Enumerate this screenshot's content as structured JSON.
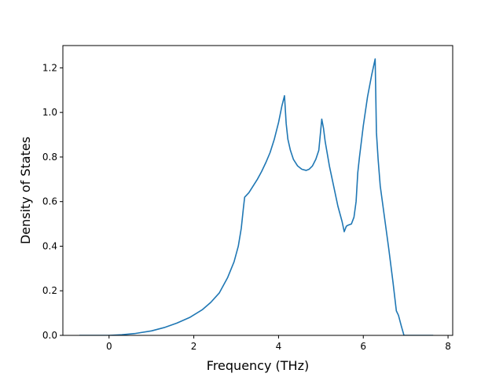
{
  "chart_data": {
    "type": "line",
    "title": "",
    "xlabel": "Frequency (THz)",
    "ylabel": "Density of States",
    "xlim": [
      -1.09,
      8.11
    ],
    "ylim": [
      0,
      1.3
    ],
    "xticks": [
      0,
      2,
      4,
      6,
      8
    ],
    "yticks": [
      0.0,
      0.2,
      0.4,
      0.6,
      0.8,
      1.0,
      1.2
    ],
    "xtick_labels": [
      "0",
      "2",
      "4",
      "6",
      "8"
    ],
    "ytick_labels": [
      "0.0",
      "0.2",
      "0.4",
      "0.6",
      "0.8",
      "1.0",
      "1.2"
    ],
    "grid": false,
    "legend": "none",
    "series": [
      {
        "color": "#1f77b4",
        "x": [
          -0.7,
          0.0,
          0.3,
          0.6,
          1.0,
          1.3,
          1.6,
          1.9,
          2.2,
          2.4,
          2.6,
          2.8,
          2.95,
          3.05,
          3.12,
          3.17,
          3.2,
          3.3,
          3.4,
          3.5,
          3.6,
          3.7,
          3.8,
          3.9,
          4.0,
          4.08,
          4.14,
          4.18,
          4.22,
          4.28,
          4.35,
          4.45,
          4.55,
          4.65,
          4.72,
          4.8,
          4.88,
          4.95,
          5.02,
          5.06,
          5.1,
          5.2,
          5.3,
          5.4,
          5.5,
          5.55,
          5.6,
          5.65,
          5.72,
          5.78,
          5.83,
          5.87,
          5.91,
          6.0,
          6.1,
          6.2,
          6.28,
          6.31,
          6.35,
          6.4,
          6.5,
          6.6,
          6.7,
          6.78,
          6.83,
          6.9,
          6.96,
          7.0,
          7.2,
          7.65
        ],
        "y": [
          0.0,
          0.0,
          0.003,
          0.008,
          0.02,
          0.035,
          0.055,
          0.08,
          0.115,
          0.148,
          0.19,
          0.26,
          0.33,
          0.4,
          0.48,
          0.57,
          0.62,
          0.64,
          0.67,
          0.7,
          0.735,
          0.775,
          0.82,
          0.88,
          0.955,
          1.03,
          1.075,
          0.95,
          0.88,
          0.83,
          0.79,
          0.76,
          0.745,
          0.74,
          0.745,
          0.76,
          0.79,
          0.83,
          0.97,
          0.93,
          0.87,
          0.76,
          0.67,
          0.58,
          0.51,
          0.465,
          0.49,
          0.495,
          0.5,
          0.53,
          0.6,
          0.73,
          0.8,
          0.94,
          1.07,
          1.17,
          1.24,
          0.91,
          0.79,
          0.67,
          0.53,
          0.39,
          0.24,
          0.11,
          0.09,
          0.04,
          0.0,
          0.0,
          0.0,
          0.0
        ]
      }
    ]
  }
}
